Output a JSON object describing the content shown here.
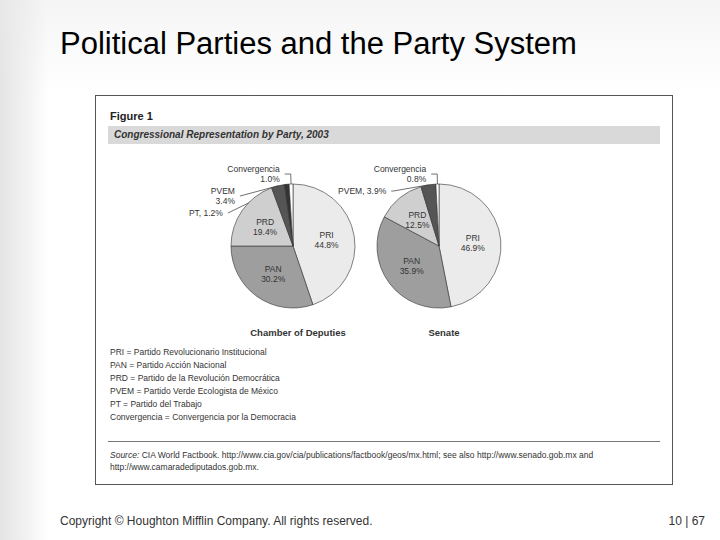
{
  "slide_title": "Political Parties and the Party System",
  "figure": {
    "label": "Figure 1",
    "title": "Congressional Representation by Party, 2003"
  },
  "chart_data": [
    {
      "type": "pie",
      "title": "Chamber of Deputies",
      "categories": [
        "PRI",
        "PAN",
        "PRD",
        "PVEM",
        "PT",
        "Convergencia"
      ],
      "values": [
        44.8,
        30.2,
        19.4,
        3.4,
        1.2,
        1.0
      ],
      "value_labels": [
        "PRI\n44.8%",
        "PAN\n30.2%",
        "PRD\n19.4%",
        "PVEM\n3.4%",
        "PT, 1.2%",
        "Convergencia\n1.0%"
      ],
      "colors": [
        "#ebebeb",
        "#9e9e9e",
        "#cfcfcf",
        "#555555",
        "#333333",
        "#ffffff"
      ],
      "data_labels": true
    },
    {
      "type": "pie",
      "title": "Senate",
      "categories": [
        "PRI",
        "PAN",
        "PRD",
        "PVEM",
        "Convergencia"
      ],
      "values": [
        46.9,
        35.9,
        12.5,
        3.9,
        0.8
      ],
      "value_labels": [
        "PRI\n46.9%",
        "PAN\n35.9%",
        "PRD\n12.5%",
        "PVEM, 3.9%",
        "Convergencia\n0.8%"
      ],
      "colors": [
        "#ebebeb",
        "#9e9e9e",
        "#cfcfcf",
        "#555555",
        "#ffffff"
      ],
      "data_labels": true
    }
  ],
  "key": [
    "PRI = Partido Revolucionario Institucional",
    "PAN = Partido Acción Nacional",
    "PRD = Partido de la Revolución Democrática",
    "PVEM = Partido Verde Ecologista de México",
    "PT = Partido del Trabajo",
    "Convergencia = Convergencia por la Democracia"
  ],
  "source": {
    "lead": "Source:",
    "text": "CIA World Factbook. http://www.cia.gov/cia/publications/factbook/geos/mx.html; see also http://www.senado.gob.mx and http://www.camaradediputados.gob.mx."
  },
  "footer": {
    "copyright": "Copyright © Houghton Mifflin Company. All rights reserved.",
    "page": "10 | 67"
  }
}
